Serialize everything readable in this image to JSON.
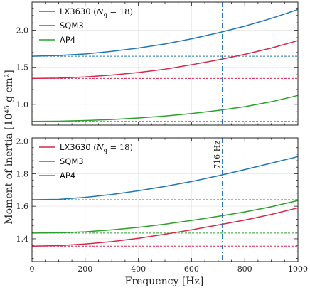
{
  "figure": {
    "xlabel": "Frequency [Hz]",
    "ylabel": "Moment of inertia [10⁴⁵ g cm²]",
    "vline": {
      "x": 716,
      "label": "716 Hz",
      "color": "#1f77b4"
    },
    "colors": {
      "LX3630": "#d6274d",
      "SQM3": "#1f77b4",
      "AP4": "#2ca02c"
    }
  },
  "chart_data": [
    {
      "type": "line",
      "panel": "top",
      "xlim": [
        0,
        1000
      ],
      "ylim": [
        0.72,
        2.38
      ],
      "xticks": [
        0,
        200,
        400,
        600,
        800,
        1000
      ],
      "yticks": [
        1.0,
        1.5,
        2.0
      ],
      "ytick_labels": [
        "1.0",
        "1.5",
        "2.0"
      ],
      "grid": true,
      "legend_position": "top-left",
      "series": [
        {
          "name": "LX3630 (N_q = 18)",
          "color_key": "LX3630",
          "x": [
            0,
            100,
            200,
            300,
            400,
            500,
            600,
            700,
            800,
            900,
            1000
          ],
          "values": [
            1.35,
            1.355,
            1.37,
            1.395,
            1.43,
            1.475,
            1.535,
            1.6,
            1.675,
            1.76,
            1.86
          ],
          "static": 1.35
        },
        {
          "name": "SQM3",
          "color_key": "SQM3",
          "x": [
            0,
            100,
            200,
            300,
            400,
            500,
            600,
            700,
            800,
            900,
            1000
          ],
          "values": [
            1.65,
            1.66,
            1.68,
            1.715,
            1.76,
            1.815,
            1.885,
            1.965,
            2.055,
            2.16,
            2.28
          ],
          "static": 1.65
        },
        {
          "name": "AP4",
          "color_key": "AP4",
          "x": [
            0,
            100,
            200,
            300,
            400,
            500,
            600,
            700,
            800,
            900,
            1000
          ],
          "values": [
            0.77,
            0.773,
            0.782,
            0.796,
            0.816,
            0.842,
            0.876,
            0.918,
            0.968,
            1.035,
            1.12
          ],
          "static": 0.77
        }
      ]
    },
    {
      "type": "line",
      "panel": "bottom",
      "xlim": [
        0,
        1000
      ],
      "ylim": [
        1.26,
        2.02
      ],
      "xticks": [
        0,
        200,
        400,
        600,
        800,
        1000
      ],
      "xtick_labels": [
        "0",
        "200",
        "400",
        "600",
        "800",
        "1000"
      ],
      "yticks": [
        1.4,
        1.6,
        1.8,
        2.0
      ],
      "ytick_labels": [
        "1.4",
        "1.6",
        "1.8",
        "2.0"
      ],
      "grid": true,
      "legend_position": "top-left",
      "series": [
        {
          "name": "LX3630 (N_q = 18)",
          "color_key": "LX3630",
          "x": [
            0,
            100,
            200,
            300,
            400,
            500,
            600,
            700,
            800,
            900,
            1000
          ],
          "values": [
            1.355,
            1.358,
            1.368,
            1.383,
            1.403,
            1.428,
            1.455,
            1.485,
            1.515,
            1.55,
            1.59
          ],
          "static": 1.355
        },
        {
          "name": "SQM3",
          "color_key": "SQM3",
          "x": [
            0,
            100,
            200,
            300,
            400,
            500,
            600,
            700,
            800,
            900,
            1000
          ],
          "values": [
            1.64,
            1.642,
            1.655,
            1.672,
            1.695,
            1.722,
            1.752,
            1.787,
            1.825,
            1.865,
            1.905
          ],
          "static": 1.64
        },
        {
          "name": "AP4",
          "color_key": "AP4",
          "x": [
            0,
            100,
            200,
            300,
            400,
            500,
            600,
            700,
            800,
            900,
            1000
          ],
          "values": [
            1.435,
            1.437,
            1.443,
            1.455,
            1.47,
            1.49,
            1.513,
            1.538,
            1.565,
            1.597,
            1.635
          ],
          "static": 1.435
        }
      ]
    }
  ]
}
